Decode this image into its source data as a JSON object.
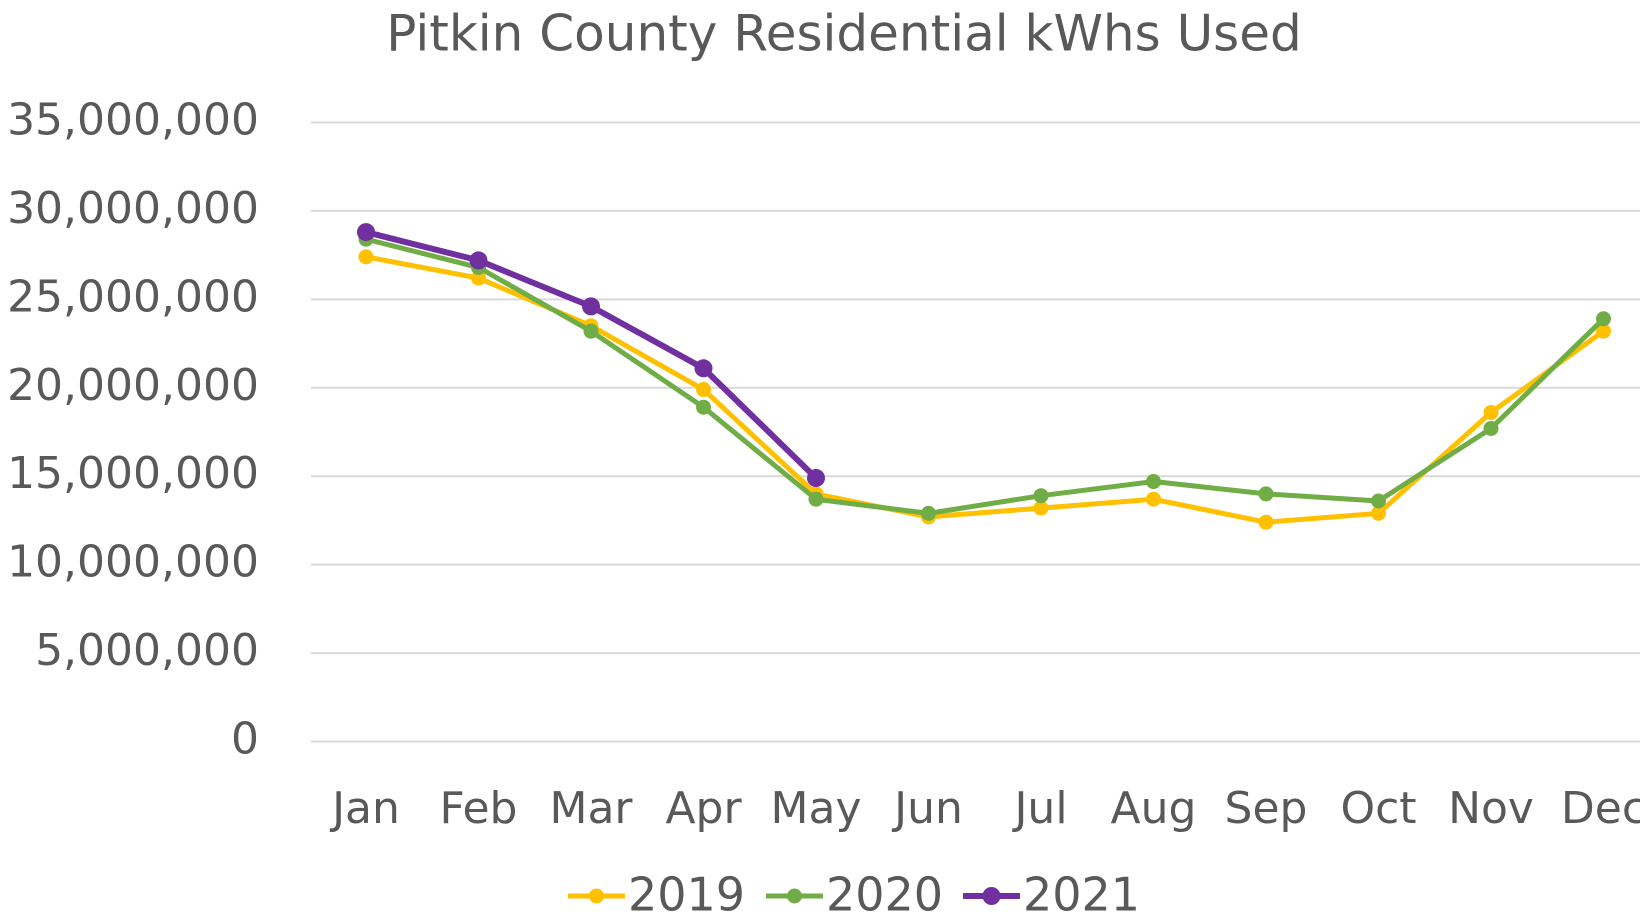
{
  "chart_data": {
    "type": "line",
    "title": "Pitkin County Residential kWhs Used",
    "categories": [
      "Jan",
      "Feb",
      "Mar",
      "Apr",
      "May",
      "Jun",
      "Jul",
      "Aug",
      "Sep",
      "Oct",
      "Nov",
      "Dec"
    ],
    "series": [
      {
        "name": "2019",
        "color": "#FFC000",
        "values": [
          27400000,
          26200000,
          23500000,
          19900000,
          14000000,
          12700000,
          13200000,
          13700000,
          12400000,
          12900000,
          18600000,
          23200000
        ]
      },
      {
        "name": "2020",
        "color": "#70AD47",
        "values": [
          28400000,
          26800000,
          23200000,
          18900000,
          13700000,
          12900000,
          13900000,
          14700000,
          14000000,
          13600000,
          17700000,
          23900000
        ]
      },
      {
        "name": "2021",
        "color": "#7030A0",
        "values": [
          28800000,
          27200000,
          24600000,
          21100000,
          14900000,
          null,
          null,
          null,
          null,
          null,
          null,
          null
        ]
      }
    ],
    "ylim": [
      0,
      35000000
    ],
    "yticks": [
      0,
      {
        "value": 5000000,
        "label": "5,000,000"
      },
      {
        "value": 10000000,
        "label": "10,000,000"
      },
      {
        "value": 15000000,
        "label": "15,000,000"
      },
      {
        "value": 20000000,
        "label": "20,000,000"
      },
      {
        "value": 25000000,
        "label": "25,000,000"
      },
      {
        "value": 30000000,
        "label": "30,000,000"
      },
      {
        "value": 35000000,
        "label": "35,000,000"
      }
    ],
    "grid": true,
    "legend": "bottom"
  }
}
